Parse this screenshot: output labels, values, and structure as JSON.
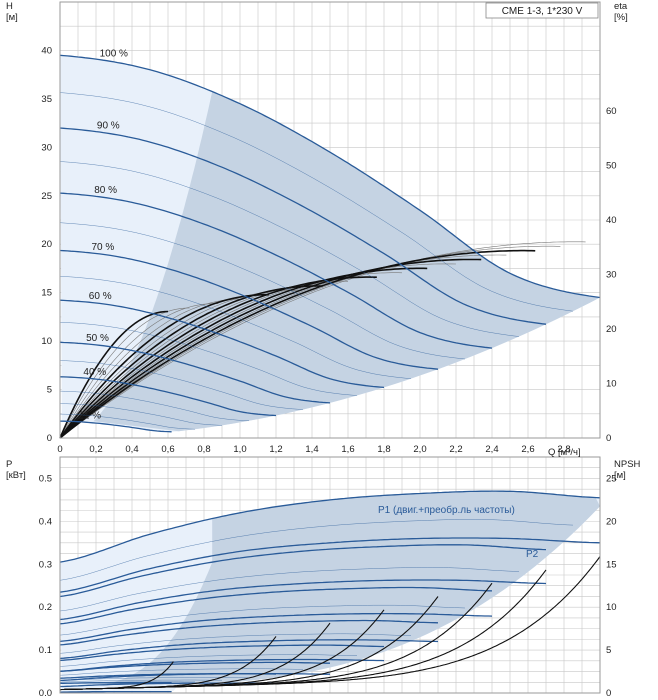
{
  "model_label": "CME 1-3, 1*230 V",
  "colors": {
    "grid": "#c8c8c8",
    "curve": "#2a5b99",
    "light": "#e8f0fa",
    "region": "#c5d3e3",
    "eta": "#7a7a7a",
    "npsh": "#111111"
  },
  "chart_data": [
    {
      "type": "line",
      "title": "",
      "xlabel": "Q [м³/ч]",
      "ylabel": "H\n[м]",
      "y2label": "eta\n[%]",
      "xlim": [
        0,
        3.0
      ],
      "ylim": [
        0,
        45
      ],
      "y2lim": [
        0,
        80
      ],
      "x_ticks": [
        "0",
        "0,2",
        "0,4",
        "0,6",
        "0,8",
        "1,0",
        "1,2",
        "1,4",
        "1,6",
        "1,8",
        "2,0",
        "2,2",
        "2,4",
        "2,6",
        "2,8"
      ],
      "y_ticks": [
        "0",
        "5",
        "10",
        "15",
        "20",
        "25",
        "30",
        "35",
        "40"
      ],
      "y2_ticks": [
        "0",
        "10",
        "20",
        "30",
        "40",
        "50",
        "60"
      ],
      "speed_curves": [
        {
          "name": "100 %",
          "pct": 1.0
        },
        {
          "name": "90 %",
          "pct": 0.9
        },
        {
          "name": "80 %",
          "pct": 0.8
        },
        {
          "name": "70 %",
          "pct": 0.7
        },
        {
          "name": "60 %",
          "pct": 0.6
        },
        {
          "name": "50 %",
          "pct": 0.5
        },
        {
          "name": "40 %",
          "pct": 0.4
        },
        {
          "name": "21 %",
          "pct": 0.21
        }
      ],
      "head_100pct": {
        "x": [
          0,
          0.5,
          1.0,
          1.5,
          2.0,
          2.5,
          3.0
        ],
        "y": [
          39.5,
          38.0,
          34.5,
          29.5,
          23.5,
          17.0,
          14.5
        ]
      },
      "eta_max_pct": 36
    },
    {
      "type": "line",
      "title": "",
      "ylabel": "P\n[кВт]",
      "y2label": "NPSH\n[м]",
      "xlim": [
        0,
        3.0
      ],
      "ylim": [
        0,
        0.55
      ],
      "y2lim": [
        0,
        27.5
      ],
      "y_ticks": [
        "0.0",
        "0.1",
        "0.2",
        "0.3",
        "0.4",
        "0.5"
      ],
      "y2_ticks": [
        "0",
        "5",
        "10",
        "15",
        "20",
        "25"
      ],
      "series_labels": [
        "P1 (двиг.+преобр.ль частоты)",
        "P2"
      ],
      "p1_100pct": {
        "x": [
          0,
          0.5,
          1.0,
          1.5,
          2.0,
          2.5,
          3.0
        ],
        "y": [
          0.305,
          0.37,
          0.42,
          0.45,
          0.465,
          0.47,
          0.455
        ]
      },
      "p2_100pct": {
        "x": [
          0,
          0.5,
          1.0,
          1.5,
          2.0,
          2.5,
          3.0
        ],
        "y": [
          0.235,
          0.29,
          0.33,
          0.35,
          0.36,
          0.36,
          0.35
        ]
      }
    }
  ]
}
